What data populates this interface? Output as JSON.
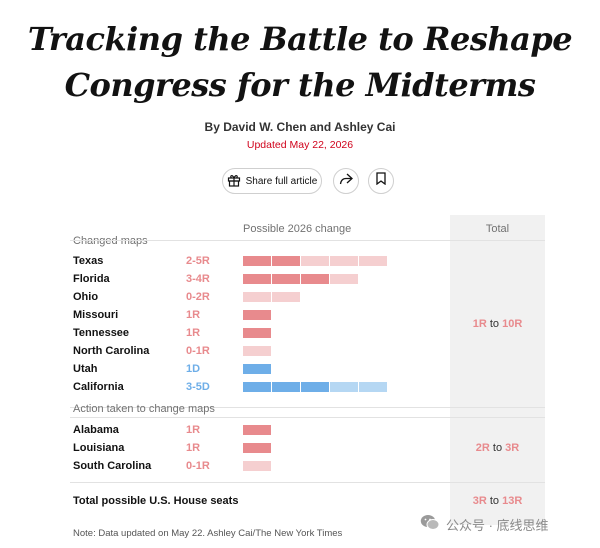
{
  "article": {
    "headline_line1": "Tracking the Battle to Reshape",
    "headline_line2": "Congress for the Midterms",
    "byline": "By David W. Chen and Ashley Cai",
    "updated": "Updated May 22, 2026"
  },
  "actions": {
    "share_label": "Share full article",
    "share_icon": "gift-icon",
    "forward_icon": "share-arrow-icon",
    "bookmark_icon": "bookmark-icon"
  },
  "colors": {
    "republican": "#e88a8d",
    "republican_light": "#f5cfd0",
    "democrat": "#6eaee8",
    "democrat_light": "#b5d7f3",
    "total_bg": "#f1f1f1"
  },
  "table": {
    "col_change": "Possible 2026 change",
    "col_total": "Total",
    "sections": [
      {
        "label": "Changed maps",
        "total": {
          "from": "1R",
          "to_word": "to",
          "to": "10R"
        },
        "rows": [
          {
            "state": "Texas",
            "change": "2-5R",
            "party": "R",
            "min": 2,
            "max": 5
          },
          {
            "state": "Florida",
            "change": "3-4R",
            "party": "R",
            "min": 3,
            "max": 4
          },
          {
            "state": "Ohio",
            "change": "0-2R",
            "party": "R",
            "min": 0,
            "max": 2
          },
          {
            "state": "Missouri",
            "change": "1R",
            "party": "R",
            "min": 1,
            "max": 1
          },
          {
            "state": "Tennessee",
            "change": "1R",
            "party": "R",
            "min": 1,
            "max": 1
          },
          {
            "state": "North Carolina",
            "change": "0-1R",
            "party": "R",
            "min": 0,
            "max": 1
          },
          {
            "state": "Utah",
            "change": "1D",
            "party": "D",
            "min": 1,
            "max": 1
          },
          {
            "state": "California",
            "change": "3-5D",
            "party": "D",
            "min": 3,
            "max": 5
          }
        ]
      },
      {
        "label": "Action taken to change maps",
        "total": {
          "from": "2R",
          "to_word": "to",
          "to": "3R"
        },
        "rows": [
          {
            "state": "Alabama",
            "change": "1R",
            "party": "R",
            "min": 1,
            "max": 1
          },
          {
            "state": "Louisiana",
            "change": "1R",
            "party": "R",
            "min": 1,
            "max": 1
          },
          {
            "state": "South Carolina",
            "change": "0-1R",
            "party": "R",
            "min": 0,
            "max": 1
          }
        ]
      }
    ],
    "grand_total": {
      "label": "Total possible U.S. House seats",
      "from": "3R",
      "to_word": "to",
      "to": "13R"
    }
  },
  "note": "Note: Data updated on May 22.  Ashley Cai/The New York Times",
  "watermark": {
    "text": "公众号 · 底线思维",
    "icon": "wechat-icon"
  }
}
